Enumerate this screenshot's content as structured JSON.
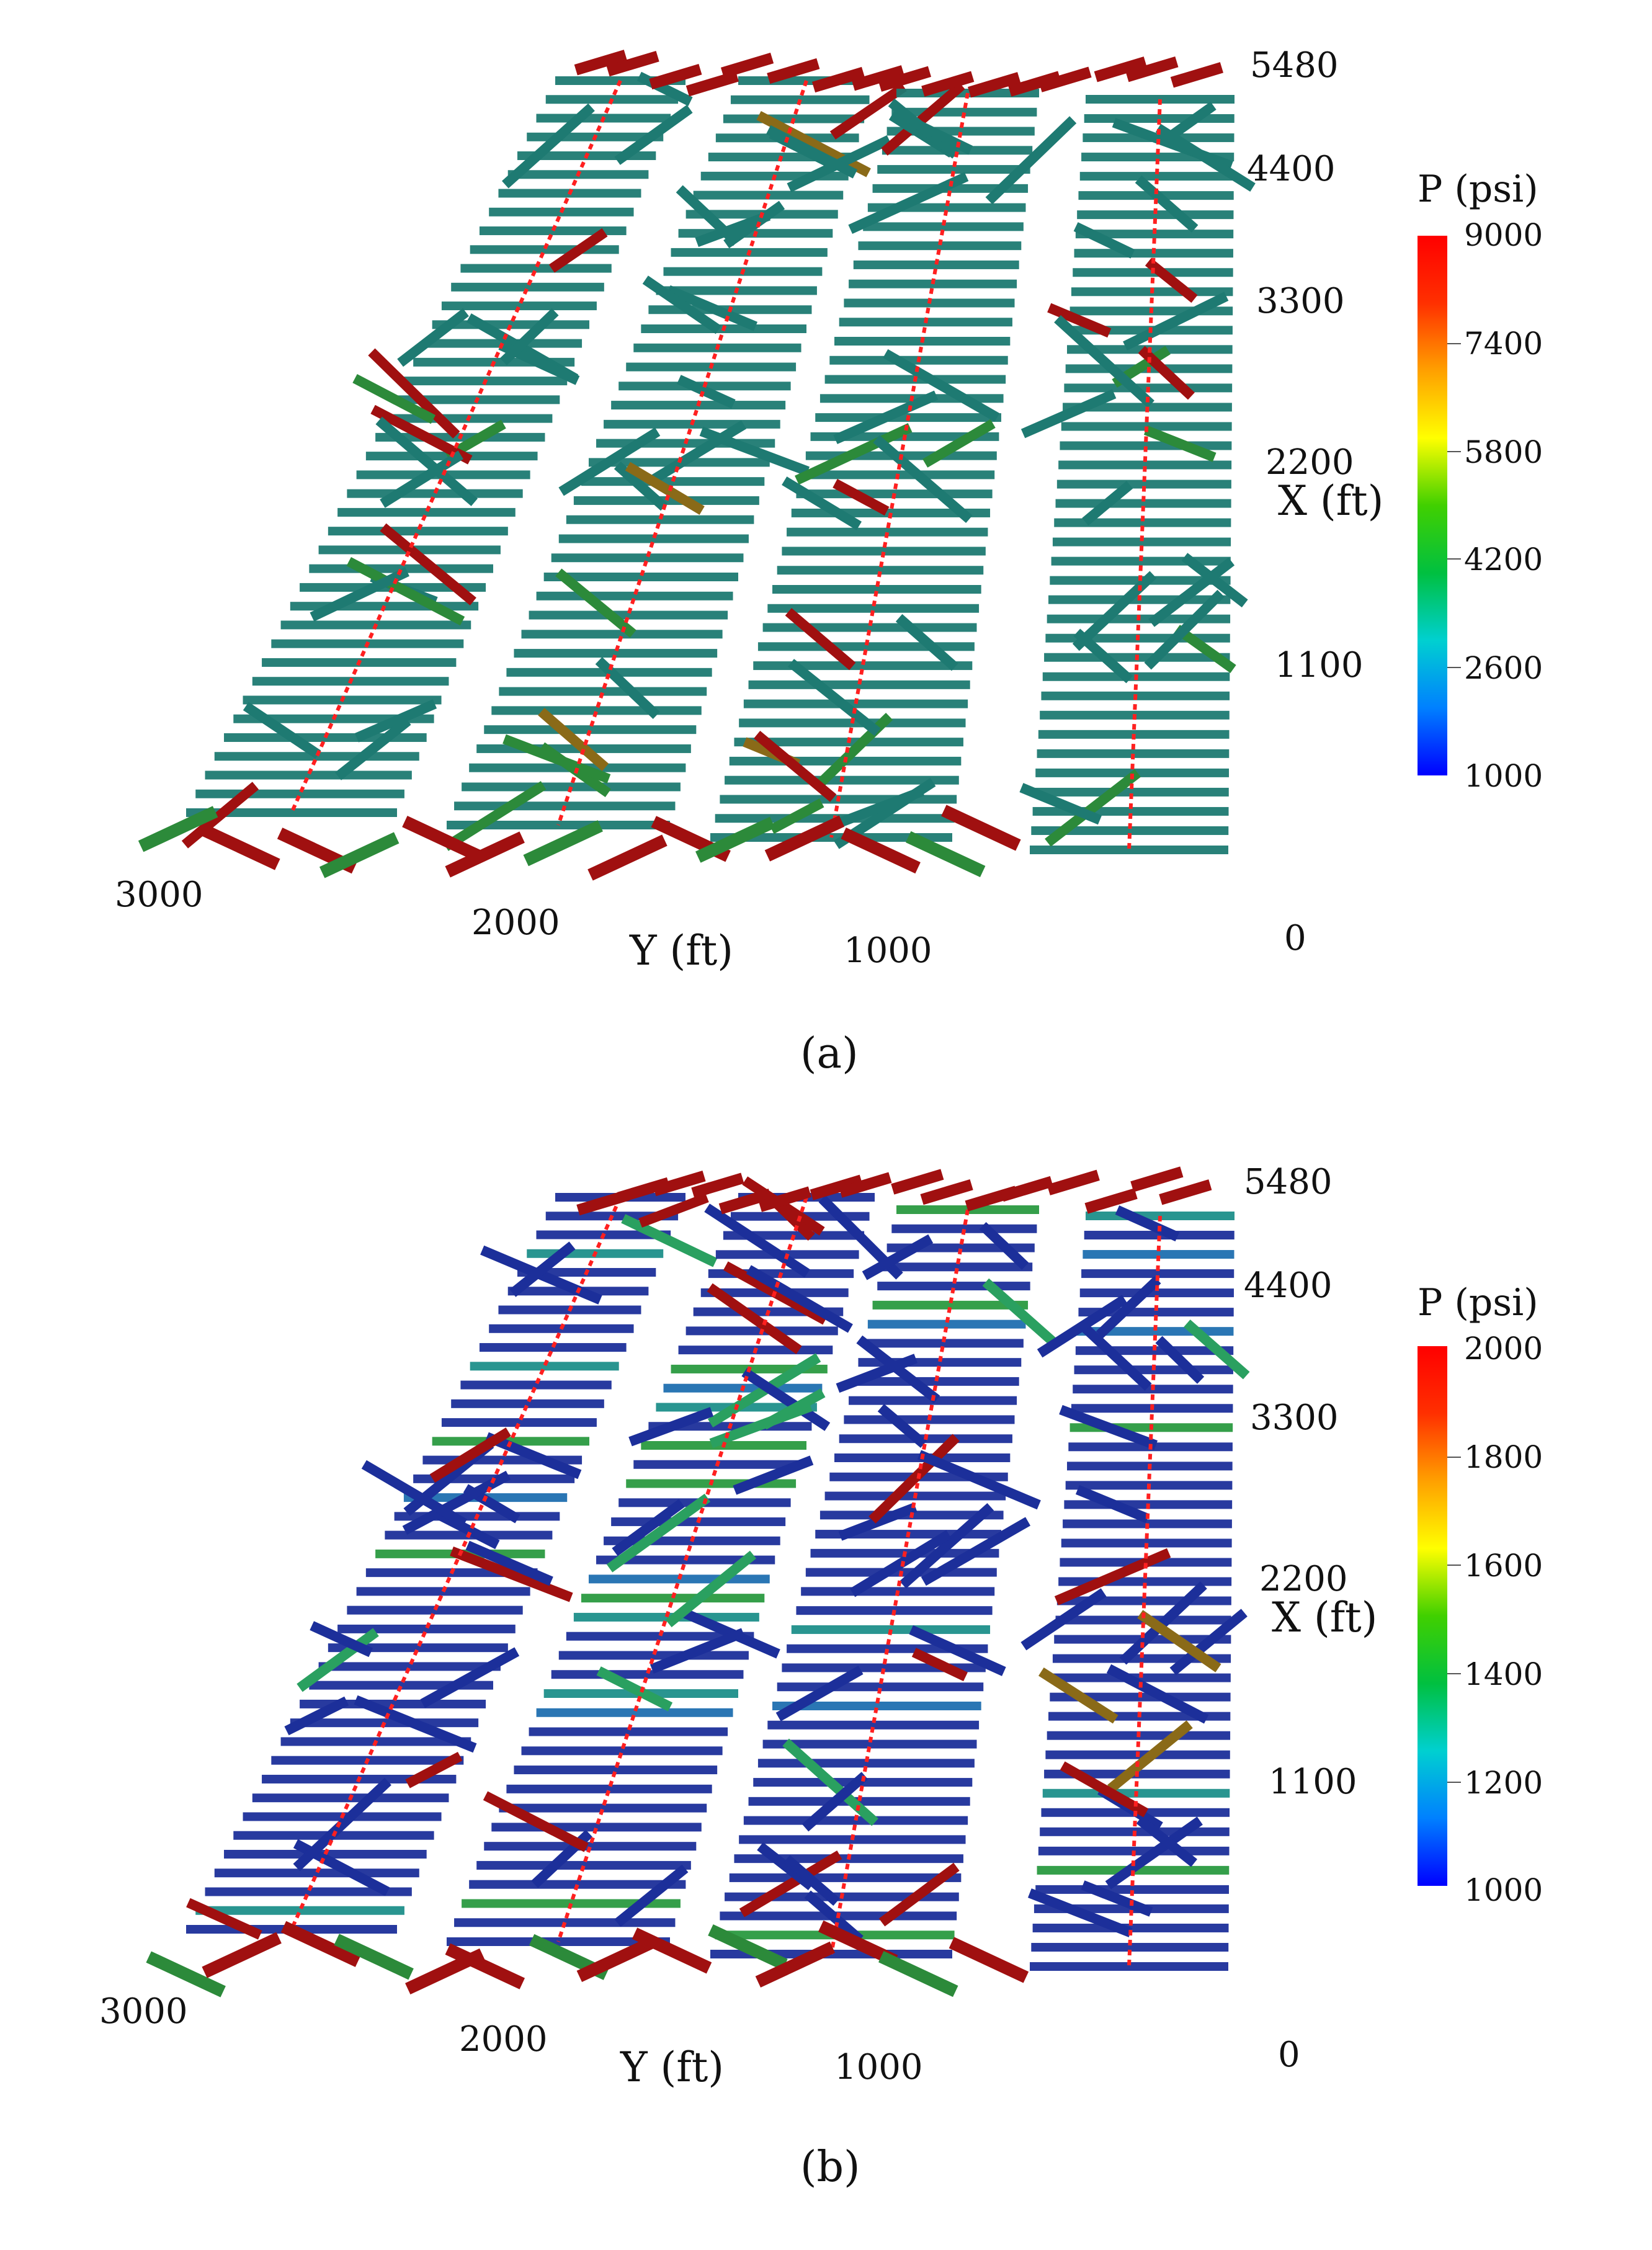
{
  "colors": {
    "jet": [
      "#0000ff",
      "#0080ff",
      "#00d0d0",
      "#00c040",
      "#40d000",
      "#ffff00",
      "#ffa000",
      "#ff3000",
      "#ff0000"
    ],
    "fracture_a": "#1e7a72",
    "fracture_b": "#1c2f9a",
    "hot": "#a01010",
    "well": "#ff2020"
  },
  "panels": [
    {
      "id": "a",
      "caption": "(a)",
      "x_axis": {
        "title": "X (ft)",
        "ticks": [
          "5480",
          "4400",
          "3300",
          "2200",
          "1100",
          "0"
        ]
      },
      "y_axis": {
        "title": "Y (ft)",
        "ticks": [
          "3000",
          "2000",
          "1000"
        ]
      },
      "colorbar": {
        "title": "P (psi)",
        "ticks": [
          "9000",
          "7400",
          "5800",
          "4200",
          "2600",
          "1000"
        ]
      }
    },
    {
      "id": "b",
      "caption": "(b)",
      "x_axis": {
        "title": "X (ft)",
        "ticks": [
          "5480",
          "4400",
          "3300",
          "2200",
          "1100",
          "0"
        ]
      },
      "y_axis": {
        "title": "Y (ft)",
        "ticks": [
          "3000",
          "2000",
          "1000"
        ]
      },
      "colorbar": {
        "title": "P (psi)",
        "ticks": [
          "2000",
          "1800",
          "1600",
          "1400",
          "1200",
          "1000"
        ]
      }
    }
  ]
}
